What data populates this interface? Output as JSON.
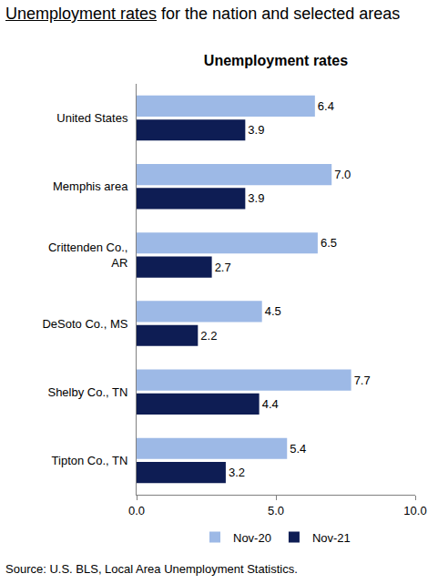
{
  "heading": {
    "underlined": "Unemployment rates",
    "rest": "for the nation and selected areas"
  },
  "source": "Source: U.S. BLS, Local Area Unemployment Statistics.",
  "chart_data": {
    "type": "bar",
    "orientation": "horizontal",
    "title": "Unemployment rates",
    "categories": [
      "United States",
      "Memphis area",
      "Crittenden Co., AR",
      "DeSoto Co., MS",
      "Shelby Co., TN",
      "Tipton Co., TN"
    ],
    "series": [
      {
        "name": "Nov-20",
        "color": "#9db9e6",
        "values": [
          6.4,
          7.0,
          6.5,
          4.5,
          7.7,
          5.4
        ],
        "value_labels": [
          "6.4",
          "7.0",
          "6.5",
          "4.5",
          "7.7",
          "5.4"
        ]
      },
      {
        "name": "Nov-21",
        "color": "#0e1d54",
        "values": [
          3.9,
          3.9,
          2.7,
          2.2,
          4.4,
          3.2
        ],
        "value_labels": [
          "3.9",
          "3.9",
          "2.7",
          "2.2",
          "4.4",
          "3.2"
        ]
      }
    ],
    "xlim": [
      0,
      10
    ],
    "xticks": [
      {
        "value": 0,
        "label": "0.0"
      },
      {
        "value": 5,
        "label": "5.0"
      },
      {
        "value": 10,
        "label": "10.0"
      }
    ],
    "grid": false,
    "legend": "bottom",
    "data_labels": true
  }
}
